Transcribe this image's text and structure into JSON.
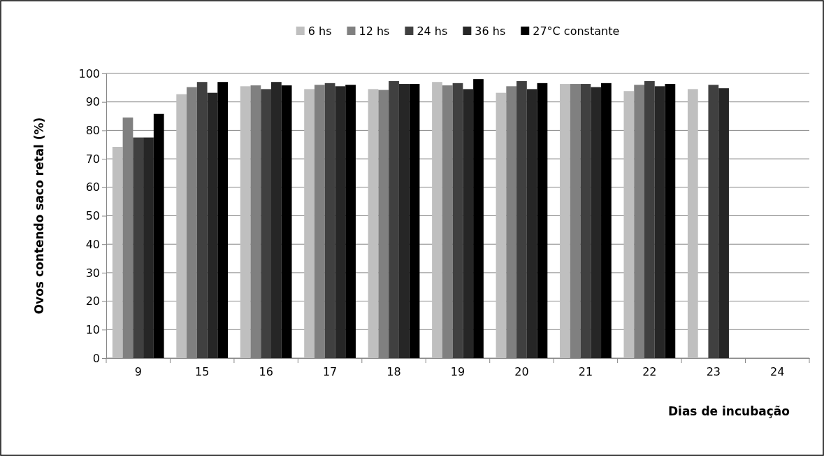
{
  "chart_data": {
    "type": "bar",
    "xlabel": "Dias de incubação",
    "ylabel": "Ovos contendo saco retal (%)",
    "categories": [
      "9",
      "15",
      "16",
      "17",
      "18",
      "19",
      "20",
      "21",
      "22",
      "23",
      "24"
    ],
    "series": [
      {
        "name": "6 hs",
        "color": "#bfbfbf",
        "values": [
          74.2,
          92.7,
          95.5,
          94.5,
          94.5,
          97,
          93.2,
          96.3,
          93.8,
          94.5,
          null
        ]
      },
      {
        "name": "12 hs",
        "color": "#808080",
        "values": [
          84.5,
          95.2,
          95.8,
          96,
          94.2,
          95.8,
          95.5,
          96.3,
          96,
          null,
          null
        ]
      },
      {
        "name": "24 hs",
        "color": "#404040",
        "values": [
          77.5,
          97,
          94.5,
          96.6,
          97.3,
          96.6,
          97.3,
          96.3,
          97.3,
          96,
          null
        ]
      },
      {
        "name": "36 hs",
        "color": "#262626",
        "values": [
          77.5,
          93.2,
          97,
          95.5,
          96.3,
          94.5,
          94.5,
          95.2,
          95.5,
          94.8,
          null
        ]
      },
      {
        "name": "27°C constante",
        "color": "#000000",
        "values": [
          85.8,
          97,
          95.8,
          96,
          96.3,
          98,
          96.6,
          96.6,
          96.3,
          null,
          null
        ]
      }
    ],
    "ylim": [
      0,
      100
    ],
    "yticks": [
      0,
      10,
      20,
      30,
      40,
      50,
      60,
      70,
      80,
      90,
      100
    ],
    "grid": "y",
    "legend": "top"
  }
}
